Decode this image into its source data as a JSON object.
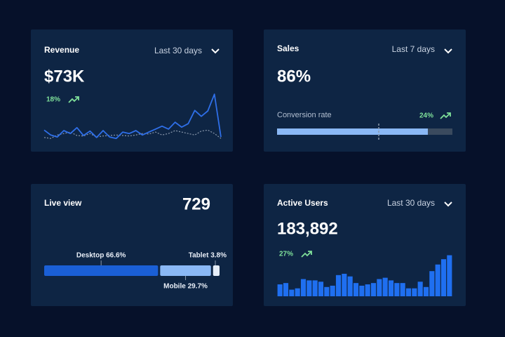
{
  "cards": [
    {
      "title": "Revenue",
      "period": "Last 30 days",
      "value": "$73K",
      "change": "18%",
      "chart": {
        "type": "line",
        "ylim": [
          0,
          100
        ],
        "series": [
          {
            "color": "#2f6fe8",
            "style": "solid",
            "values": [
              21,
              11,
              7,
              20,
              14,
              26,
              10,
              19,
              6,
              20,
              7,
              4,
              17,
              14,
              20,
              11,
              17,
              23,
              29,
              23,
              37,
              27,
              34,
              61,
              49,
              60,
              94,
              7
            ]
          },
          {
            "color": "#8a99ad",
            "style": "dotted",
            "values": [
              6,
              4,
              11,
              14,
              17,
              10,
              9,
              14,
              7,
              9,
              10,
              11,
              10,
              9,
              11,
              14,
              13,
              17,
              11,
              14,
              20,
              17,
              14,
              11,
              19,
              21,
              14,
              4
            ]
          }
        ]
      }
    },
    {
      "title": "Sales",
      "period": "Last 7 days",
      "value": "86%",
      "label": "Conversion rate",
      "change": "24%",
      "progress": {
        "value": 86,
        "max": 100,
        "marker": 58,
        "color": "#8ab8f5",
        "track": "#3a4a5e"
      }
    },
    {
      "title": "Live view",
      "value": "729",
      "breakdown": {
        "labels": [
          "Desktop 66.6%",
          "Mobile 29.7%",
          "Tablet 3.8%"
        ],
        "values": [
          66.6,
          29.7,
          3.8
        ],
        "colors": [
          "#1a5fd6",
          "#8ab8f5",
          "#e6eef9"
        ]
      }
    },
    {
      "title": "Active Users",
      "period": "Last 30 days",
      "value": "183,892",
      "change": "27%",
      "chart": {
        "type": "bar",
        "ylim": [
          0,
          70
        ],
        "color": "#1f6ff0",
        "values": [
          18,
          20,
          10,
          12,
          26,
          24,
          24,
          22,
          14,
          16,
          32,
          34,
          30,
          20,
          16,
          18,
          20,
          26,
          28,
          24,
          20,
          20,
          12,
          12,
          22,
          14,
          38,
          48,
          56,
          62
        ]
      }
    }
  ]
}
